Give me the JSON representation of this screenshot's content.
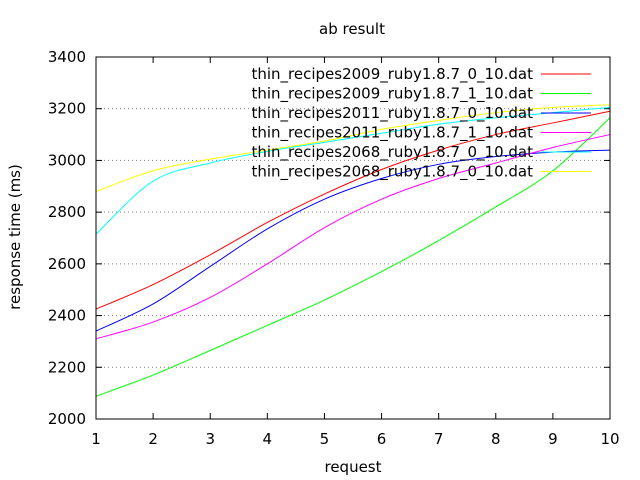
{
  "chart_data": {
    "type": "line",
    "title": "ab result",
    "xlabel": "request",
    "ylabel": "response time (ms)",
    "xlim": [
      1,
      10
    ],
    "ylim": [
      2000,
      3400
    ],
    "xticks": [
      "1",
      "2",
      "3",
      "4",
      "5",
      "6",
      "7",
      "8",
      "9",
      "10"
    ],
    "yticks": [
      "2000",
      "2200",
      "2400",
      "2600",
      "2800",
      "3000",
      "3200",
      "3400"
    ],
    "grid": "horizontal dotted",
    "legend_position": "top-right",
    "x": [
      1,
      2,
      3,
      4,
      5,
      6,
      7,
      8,
      9,
      10
    ],
    "series": [
      {
        "name": "thin_recipes2009_ruby1.8.7_0_10.dat",
        "color": "#ff0000",
        "values": [
          2425,
          2520,
          2635,
          2760,
          2870,
          2965,
          3040,
          3100,
          3145,
          3190
        ]
      },
      {
        "name": "thin_recipes2009_ruby1.8.7_1_10.dat",
        "color": "#00ff00",
        "values": [
          2088,
          2170,
          2265,
          2362,
          2460,
          2570,
          2690,
          2820,
          2960,
          3165
        ]
      },
      {
        "name": "thin_recipes2011_ruby1.8.7_0_10.dat",
        "color": "#0000ff",
        "values": [
          2340,
          2445,
          2590,
          2735,
          2850,
          2930,
          2985,
          3015,
          3032,
          3040
        ]
      },
      {
        "name": "thin_recipes2011_ruby1.8.7_1_10.dat",
        "color": "#ff00ff",
        "values": [
          2310,
          2375,
          2470,
          2600,
          2740,
          2850,
          2930,
          2990,
          3050,
          3100
        ]
      },
      {
        "name": "thin_recipes2068_ruby1.8.7_0_10.dat",
        "color": "#00ffff",
        "values": [
          2715,
          2920,
          2990,
          3035,
          3070,
          3105,
          3140,
          3165,
          3185,
          3205
        ]
      },
      {
        "name": "thin_recipes2068_ruby1.8.7_0_10.dat",
        "color": "#ffff00",
        "values": [
          2880,
          2960,
          3005,
          3040,
          3075,
          3120,
          3155,
          3185,
          3205,
          3215
        ]
      }
    ]
  }
}
